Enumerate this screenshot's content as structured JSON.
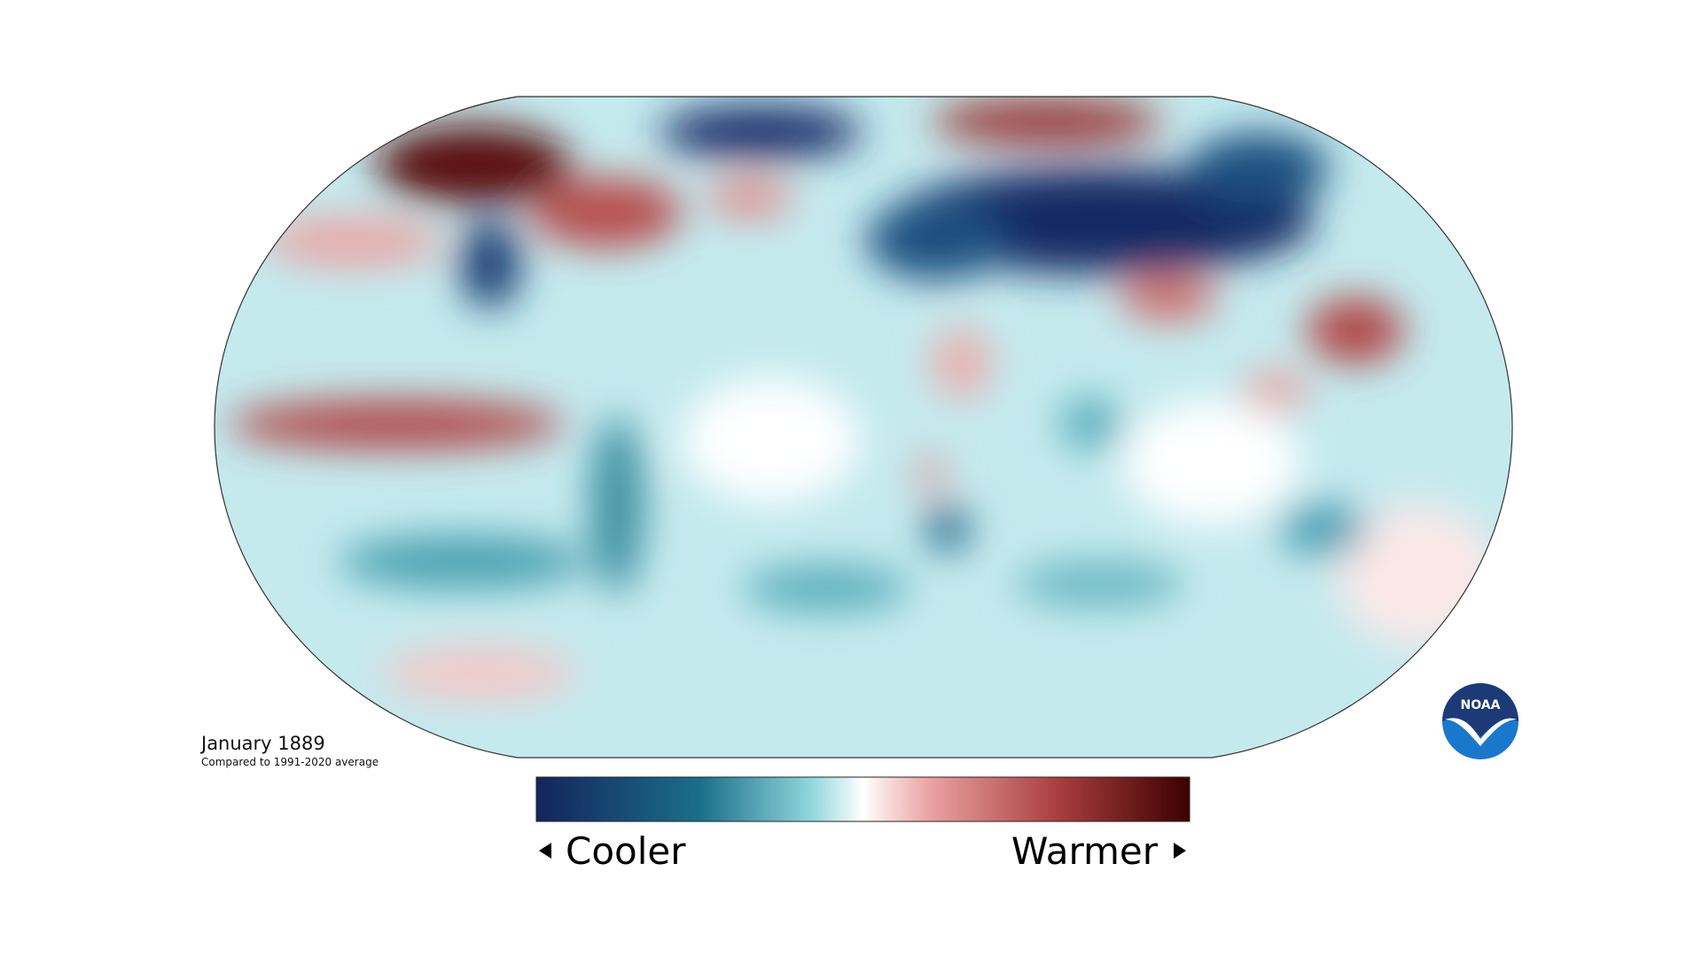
{
  "title": "January 1889",
  "subtitle": "Compared to 1991-2020 average",
  "legend": {
    "low_label": "Cooler",
    "high_label": "Warmer"
  },
  "logo": {
    "text": "NOAA"
  }
}
